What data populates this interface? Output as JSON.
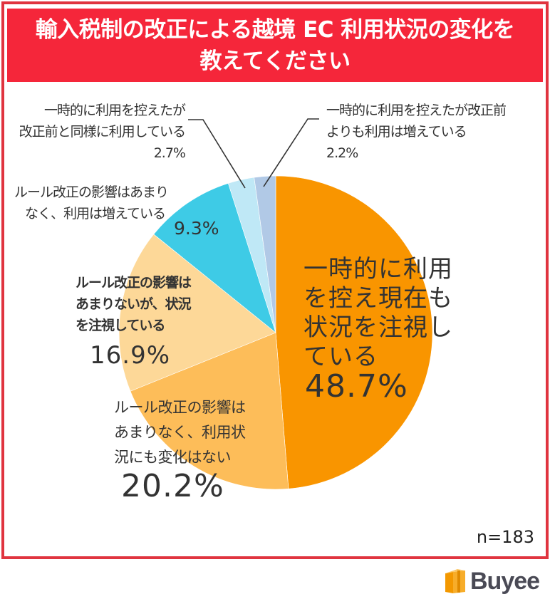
{
  "title": {
    "line1": "輸入税制の改正による越境 EC 利用状況の変化を",
    "line2": "教えてください"
  },
  "sample_size": "n=183",
  "brand": {
    "name": "Buyee",
    "icon": "gift-box-icon",
    "color": "#f39800"
  },
  "colors": {
    "frame": "#e0343f",
    "banner": "#f5263a"
  },
  "slices": [
    {
      "label_lines": [
        "一時的に利用",
        "を控え現在も",
        "状況を注視し",
        "ている"
      ],
      "pct": "48.7%",
      "color": "#f99500"
    },
    {
      "label_lines": [
        "ルール改正の影響は",
        "あまりなく、利用状",
        "況にも変化はない"
      ],
      "pct": "20.2%",
      "color": "#fdbd59"
    },
    {
      "label_lines": [
        "ルール改正の影響は",
        "あまりないが、状況",
        "を注視している"
      ],
      "pct": "16.9%",
      "color": "#fdd898"
    },
    {
      "label_lines": [
        "ルール改正の影響はあまり",
        "なく、利用は増えている"
      ],
      "pct": "9.3%",
      "color": "#3ecbe6"
    },
    {
      "label_lines": [
        "一時的に利用を控えたが",
        "改正前と同様に利用している"
      ],
      "pct": "2.7%",
      "color": "#bfe8f6"
    },
    {
      "label_lines": [
        "一時的に利用を控えたが改正前",
        "よりも利用は増えている"
      ],
      "pct": "2.2%",
      "color": "#b1c9e6"
    }
  ],
  "chart_data": {
    "type": "pie",
    "title": "輸入税制の改正による越境 EC 利用状況の変化を教えてください",
    "categories": [
      "一時的に利用を控え現在も状況を注視している",
      "ルール改正の影響はあまりなく、利用状況にも変化はない",
      "ルール改正の影響はあまりないが、状況を注視している",
      "ルール改正の影響はあまりなく、利用は増えている",
      "一時的に利用を控えたが改正前と同様に利用している",
      "一時的に利用を控えたが改正前よりも利用は増えている"
    ],
    "values": [
      48.7,
      20.2,
      16.9,
      9.3,
      2.7,
      2.2
    ],
    "colors": [
      "#f99500",
      "#fdbd59",
      "#fdd898",
      "#3ecbe6",
      "#bfe8f6",
      "#b1c9e6"
    ],
    "unit": "%",
    "start_angle": "12 o'clock",
    "direction": "clockwise",
    "annotation": "n=183",
    "legend": "none (direct labels)"
  }
}
